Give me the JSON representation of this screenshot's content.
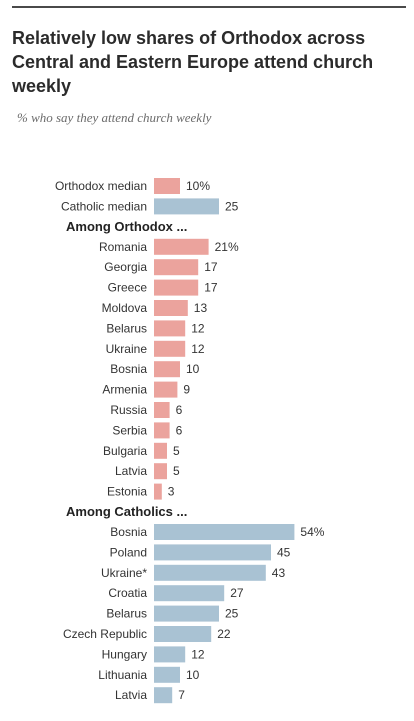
{
  "title": "Relatively low shares of Orthodox across Central and Eastern Europe attend church weekly",
  "subtitle": "% who say they attend church weekly",
  "colors": {
    "orthodox": "#eba39d",
    "catholic": "#a9c2d3"
  },
  "chart_data": {
    "type": "bar",
    "orientation": "horizontal",
    "title": "Relatively low shares of Orthodox across Central and Eastern Europe attend church weekly",
    "subtitle": "% who say they attend church weekly",
    "xlim": [
      0,
      54
    ],
    "grid": false,
    "legend": "none",
    "groups": [
      {
        "heading": "",
        "series": "orthodox",
        "rows": [
          {
            "category": "Orthodox median",
            "value": 10,
            "label": "10%",
            "series": "orthodox"
          },
          {
            "category": "Catholic median",
            "value": 25,
            "label": "25",
            "series": "catholic"
          }
        ]
      },
      {
        "heading": "Among Orthodox ...",
        "series": "orthodox",
        "rows": [
          {
            "category": "Romania",
            "value": 21,
            "label": "21%"
          },
          {
            "category": "Georgia",
            "value": 17,
            "label": "17"
          },
          {
            "category": "Greece",
            "value": 17,
            "label": "17"
          },
          {
            "category": "Moldova",
            "value": 13,
            "label": "13"
          },
          {
            "category": "Belarus",
            "value": 12,
            "label": "12"
          },
          {
            "category": "Ukraine",
            "value": 12,
            "label": "12"
          },
          {
            "category": "Bosnia",
            "value": 10,
            "label": "10"
          },
          {
            "category": "Armenia",
            "value": 9,
            "label": "9"
          },
          {
            "category": "Russia",
            "value": 6,
            "label": "6"
          },
          {
            "category": "Serbia",
            "value": 6,
            "label": "6"
          },
          {
            "category": "Bulgaria",
            "value": 5,
            "label": "5"
          },
          {
            "category": "Latvia",
            "value": 5,
            "label": "5"
          },
          {
            "category": "Estonia",
            "value": 3,
            "label": "3"
          }
        ]
      },
      {
        "heading": "Among Catholics ...",
        "series": "catholic",
        "rows": [
          {
            "category": "Bosnia",
            "value": 54,
            "label": "54%"
          },
          {
            "category": "Poland",
            "value": 45,
            "label": "45"
          },
          {
            "category": "Ukraine*",
            "value": 43,
            "label": "43"
          },
          {
            "category": "Croatia",
            "value": 27,
            "label": "27"
          },
          {
            "category": "Belarus",
            "value": 25,
            "label": "25"
          },
          {
            "category": "Czech Republic",
            "value": 22,
            "label": "22"
          },
          {
            "category": "Hungary",
            "value": 12,
            "label": "12"
          },
          {
            "category": "Lithuania",
            "value": 10,
            "label": "10"
          },
          {
            "category": "Latvia",
            "value": 7,
            "label": "7"
          }
        ]
      }
    ]
  }
}
